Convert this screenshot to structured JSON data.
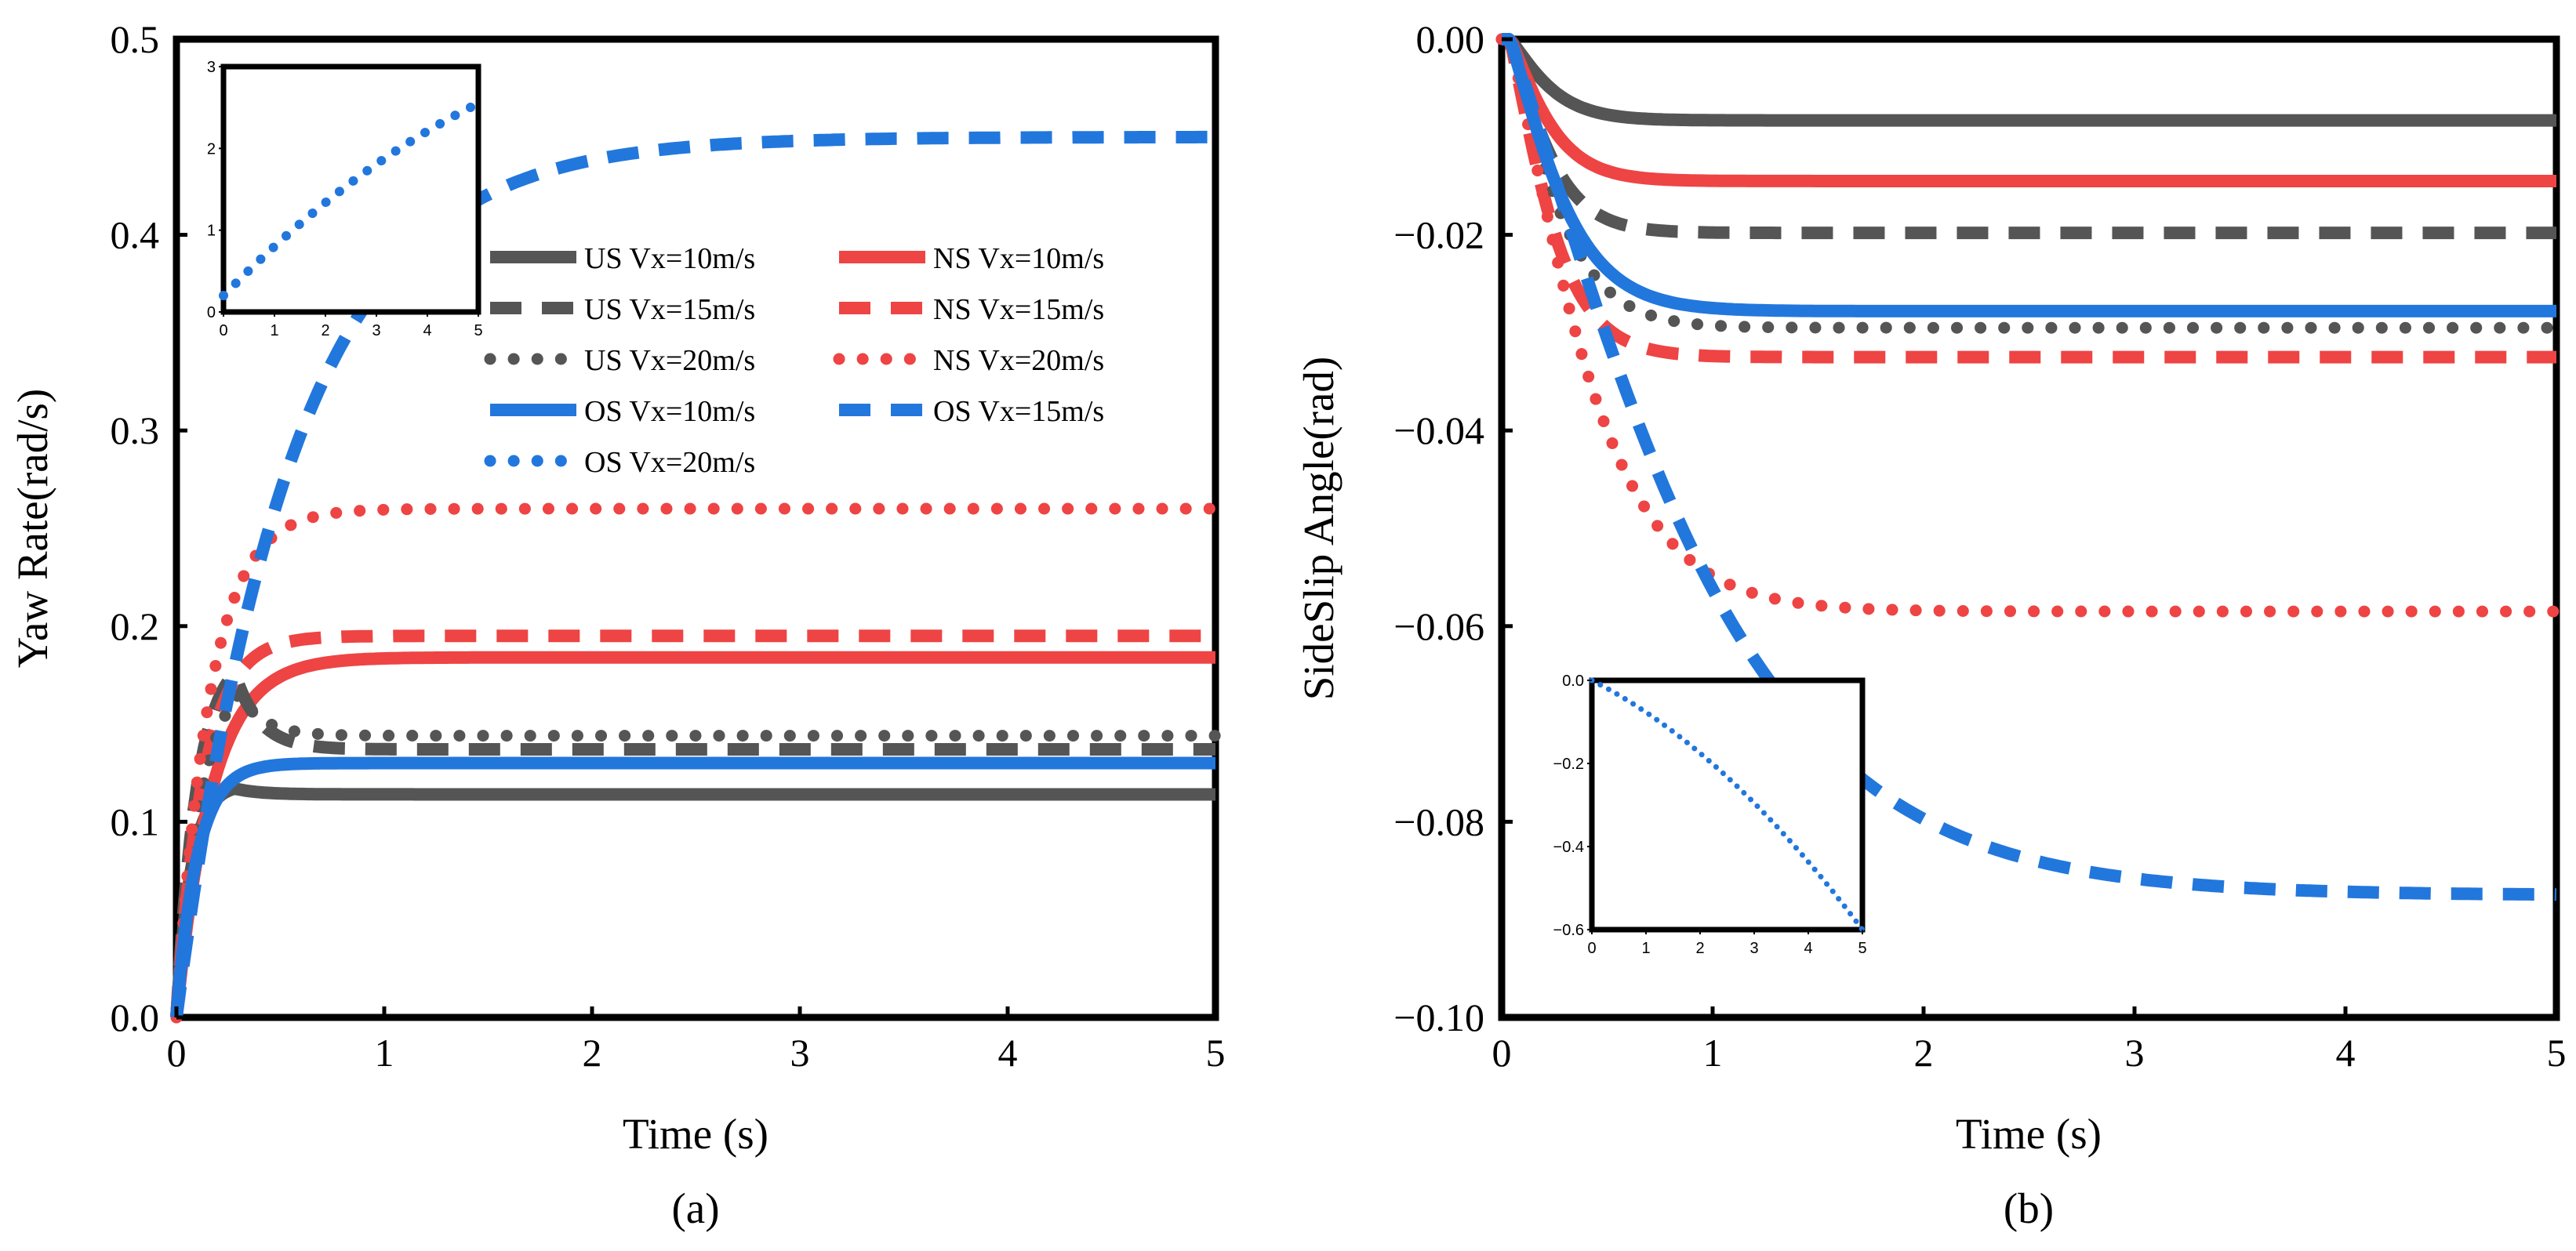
{
  "colors": {
    "US": "#555555",
    "NS": "#ee4444",
    "OS": "#2277dd"
  },
  "chart_data": [
    {
      "type": "line",
      "caption": "(a)",
      "xlabel": "Time (s)",
      "ylabel": "Yaw Rate(rad/s)",
      "xlim": [
        0,
        5
      ],
      "ylim": [
        0,
        0.5
      ],
      "xticks": [
        "0",
        "1",
        "2",
        "3",
        "4",
        "5"
      ],
      "yticks": [
        "0.0",
        "0.1",
        "0.2",
        "0.3",
        "0.4",
        "0.5"
      ],
      "legend": [
        "US Vx=10m/s",
        "NS Vx=10m/s",
        "US Vx=15m/s",
        "NS Vx=15m/s",
        "US Vx=20m/s",
        "NS Vx=20m/s",
        "OS Vx=10m/s",
        "OS Vx=15m/s",
        "OS Vx=20m/s"
      ],
      "series": [
        {
          "name": "US Vx=10m/s",
          "group": "US",
          "style": "solid",
          "final": 0.114,
          "peak": 0.117,
          "t_peak": 0.28,
          "tau": 0.07
        },
        {
          "name": "NS Vx=10m/s",
          "group": "NS",
          "style": "solid",
          "final": 0.184,
          "tau": 0.17
        },
        {
          "name": "US Vx=15m/s",
          "group": "US",
          "style": "dashed",
          "final": 0.137,
          "peak": 0.176,
          "t_peak": 0.28,
          "tau": 0.1
        },
        {
          "name": "NS Vx=15m/s",
          "group": "NS",
          "style": "dashed",
          "final": 0.195,
          "tau": 0.13
        },
        {
          "name": "US Vx=20m/s",
          "group": "US",
          "style": "dotted",
          "final": 0.144,
          "peak": 0.165,
          "t_peak": 0.3,
          "tau": 0.12
        },
        {
          "name": "NS Vx=20m/s",
          "group": "NS",
          "style": "dotted",
          "final": 0.26,
          "tau": 0.16
        },
        {
          "name": "OS Vx=10m/s",
          "group": "OS",
          "style": "solid",
          "final": 0.13,
          "tau": 0.1
        },
        {
          "name": "OS Vx=15m/s",
          "group": "OS",
          "style": "dashed",
          "final": 0.45,
          "tau": 0.55
        }
      ],
      "inset": {
        "xlim": [
          0,
          5
        ],
        "ylim": [
          0,
          3
        ],
        "xticks": [
          "0",
          "1",
          "2",
          "3",
          "4",
          "5"
        ],
        "yticks": [
          "0",
          "1",
          "2",
          "3"
        ],
        "series": {
          "name": "OS Vx=20m/s",
          "group": "OS",
          "style": "dotted",
          "start": 0.2,
          "end": 2.55
        }
      }
    },
    {
      "type": "line",
      "caption": "(b)",
      "xlabel": "Time (s)",
      "ylabel": "SideSlip Angle(rad)",
      "xlim": [
        0,
        5
      ],
      "ylim": [
        -0.1,
        0
      ],
      "xticks": [
        "0",
        "1",
        "2",
        "3",
        "4",
        "5"
      ],
      "yticks": [
        "0.00",
        "−0.02",
        "−0.04",
        "−0.06",
        "−0.08",
        "−0.10"
      ],
      "series": [
        {
          "name": "US Vx=10m/s",
          "group": "US",
          "style": "solid",
          "final": -0.0083,
          "tau": 0.12
        },
        {
          "name": "NS Vx=10m/s",
          "group": "NS",
          "style": "solid",
          "final": -0.0145,
          "tau": 0.12
        },
        {
          "name": "US Vx=15m/s",
          "group": "US",
          "style": "dashed",
          "final": -0.0198,
          "tau": 0.12
        },
        {
          "name": "NS Vx=15m/s",
          "group": "NS",
          "style": "dashed",
          "final": -0.0325,
          "tau": 0.13
        },
        {
          "name": "US Vx=20m/s",
          "group": "US",
          "style": "dotted",
          "final": -0.0295,
          "tau": 0.15
        },
        {
          "name": "NS Vx=20m/s",
          "group": "NS",
          "style": "dotted",
          "final": -0.0585,
          "tau": 0.24
        },
        {
          "name": "OS Vx=10m/s",
          "group": "OS",
          "style": "solid",
          "final": -0.0278,
          "tau": 0.16
        },
        {
          "name": "OS Vx=15m/s",
          "group": "OS",
          "style": "dashed",
          "final": -0.0875,
          "tau": 0.55
        }
      ],
      "inset": {
        "xlim": [
          0,
          5
        ],
        "ylim": [
          -0.6,
          0
        ],
        "xticks": [
          "0",
          "1",
          "2",
          "3",
          "4",
          "5"
        ],
        "yticks": [
          "0.0",
          "−0.2",
          "−0.4",
          "−0.6"
        ],
        "series": {
          "name": "OS Vx=20m/s",
          "group": "OS",
          "style": "dotted",
          "start": 0.0,
          "end": -0.6
        }
      }
    }
  ]
}
